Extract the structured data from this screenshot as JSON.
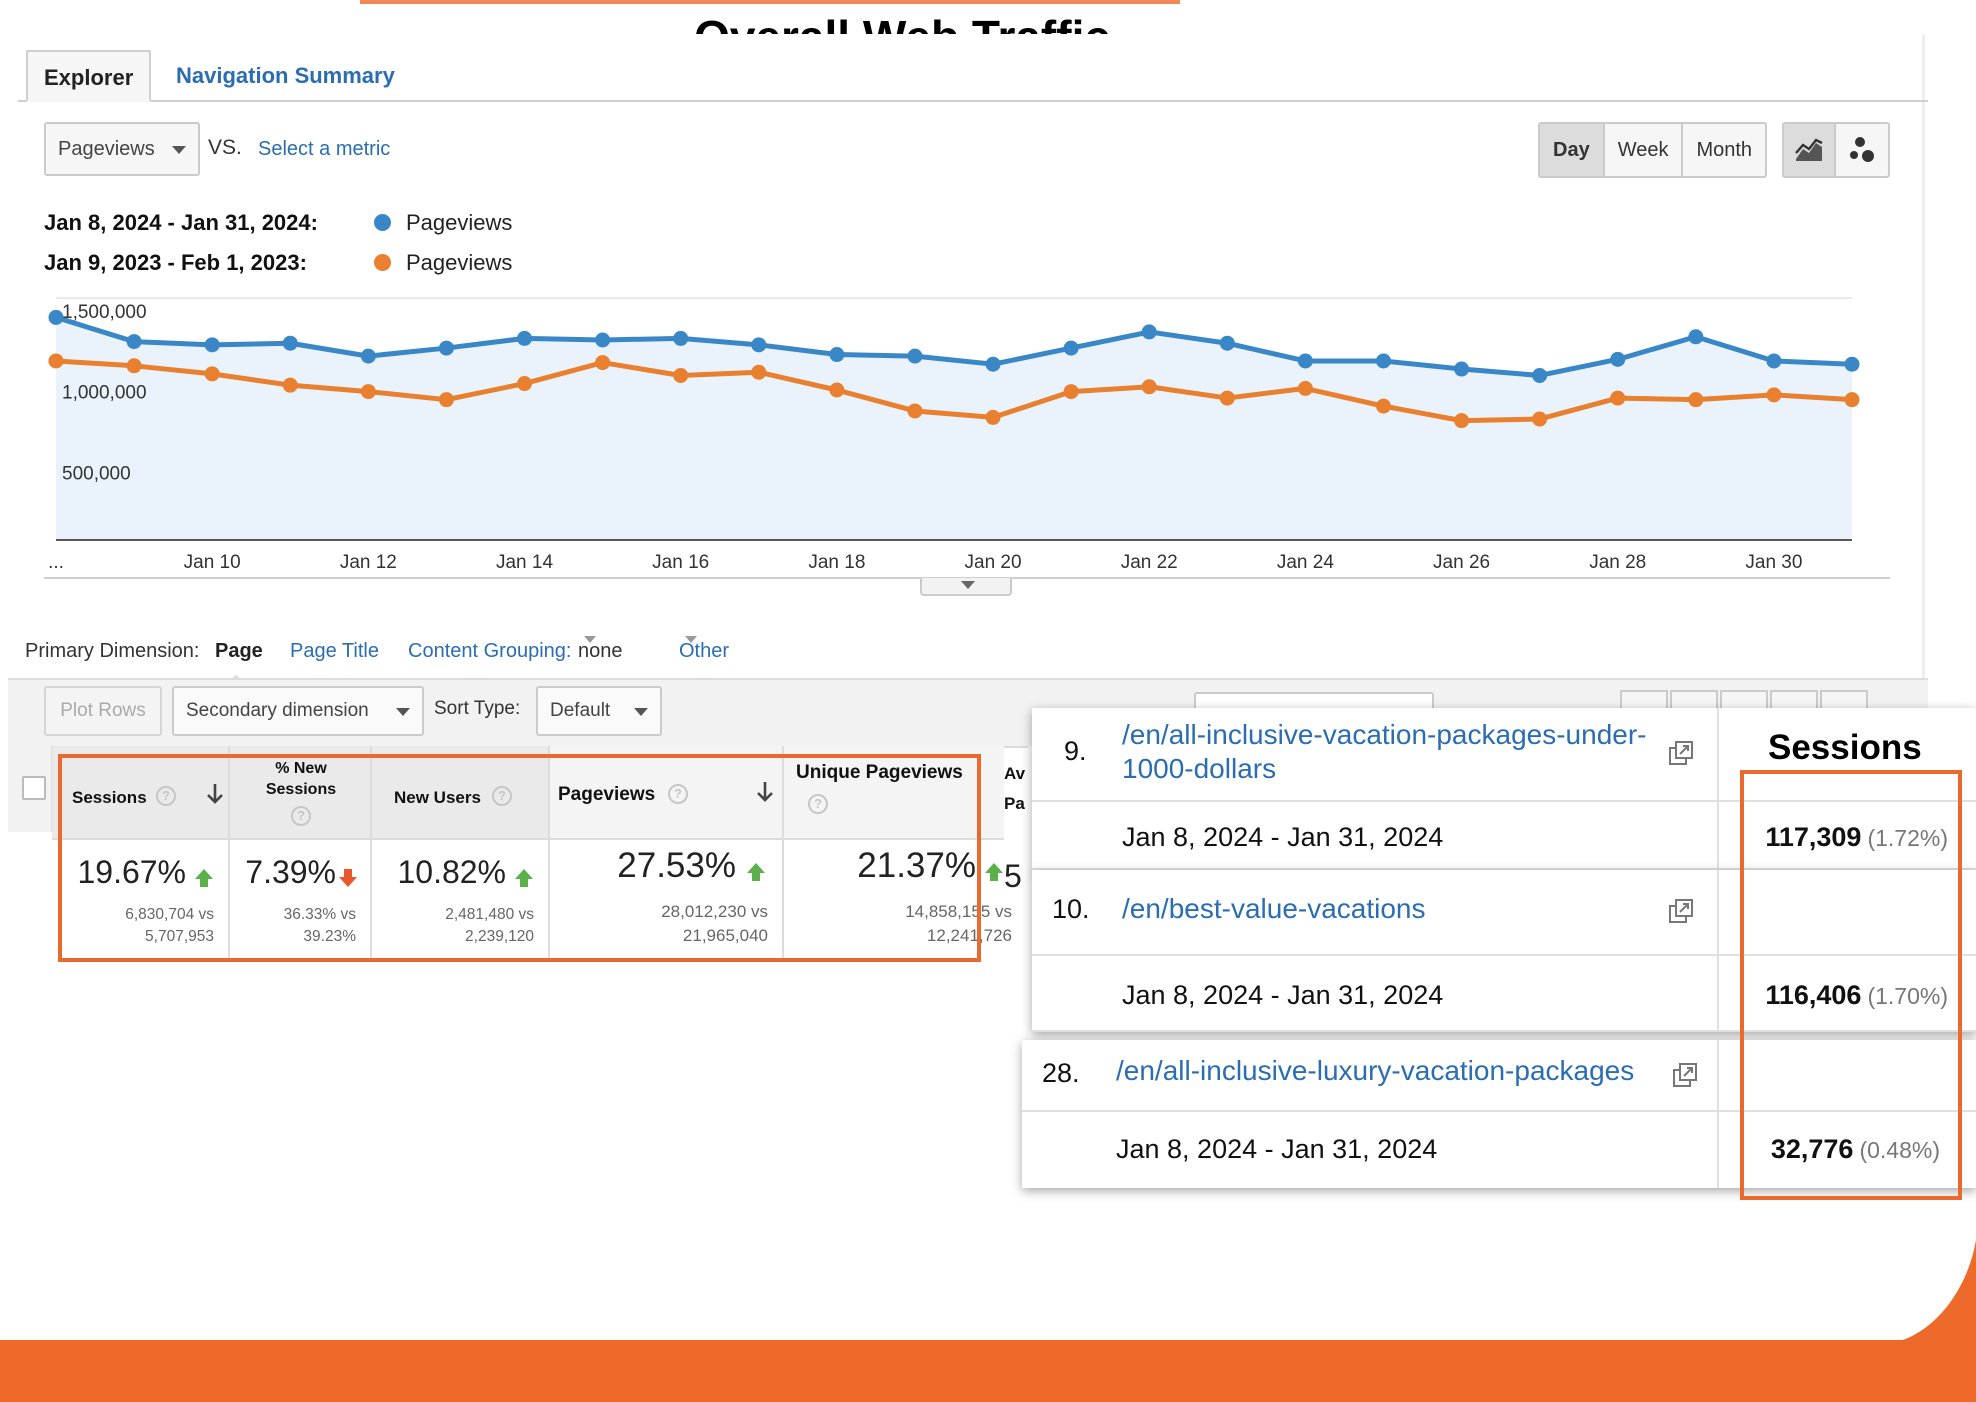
{
  "headline": "Overall Web Traffic",
  "tabs": {
    "explorer": "Explorer",
    "navigation_summary": "Navigation Summary"
  },
  "metric_bar": {
    "metric": "Pageviews",
    "vs": "VS.",
    "select_metric": "Select a metric",
    "periods": [
      "Day",
      "Week",
      "Month"
    ],
    "active_period": "Day"
  },
  "legend": [
    {
      "range": "Jan 8, 2024 - Jan 31, 2024:",
      "metric": "Pageviews",
      "color": "#3a87c8"
    },
    {
      "range": "Jan 9, 2023 - Feb 1, 2023:",
      "metric": "Pageviews",
      "color": "#e8802f"
    }
  ],
  "chart_data": {
    "type": "line",
    "title": "",
    "xlabel": "",
    "ylabel": "",
    "ylim": [
      0,
      1550000
    ],
    "y_ticks": [
      500000,
      1000000,
      1500000
    ],
    "y_tick_labels": [
      "500,000",
      "1,000,000",
      "1,500,000"
    ],
    "x_tick_labels": [
      "...",
      "Jan 10",
      "Jan 12",
      "Jan 14",
      "Jan 16",
      "Jan 18",
      "Jan 20",
      "Jan 22",
      "Jan 24",
      "Jan 26",
      "Jan 28",
      "Jan 30"
    ],
    "x_tick_indices": [
      0,
      2,
      4,
      6,
      8,
      10,
      12,
      14,
      16,
      18,
      20,
      22
    ],
    "grid": true,
    "series": [
      {
        "name": "Pageviews",
        "color": "#3a87c8",
        "area": true,
        "values": [
          1380000,
          1230000,
          1210000,
          1220000,
          1140000,
          1190000,
          1250000,
          1240000,
          1250000,
          1210000,
          1150000,
          1140000,
          1090000,
          1190000,
          1290000,
          1220000,
          1110000,
          1110000,
          1060000,
          1020000,
          1120000,
          1260000,
          1110000,
          1090000
        ]
      },
      {
        "name": "Pageviews",
        "color": "#e8802f",
        "area": false,
        "values": [
          1110000,
          1080000,
          1030000,
          960000,
          920000,
          870000,
          970000,
          1100000,
          1020000,
          1040000,
          930000,
          800000,
          760000,
          920000,
          950000,
          880000,
          940000,
          830000,
          740000,
          750000,
          880000,
          870000,
          900000,
          870000
        ]
      }
    ]
  },
  "dimension_bar": {
    "label": "Primary Dimension:",
    "active": "Page",
    "page_title": "Page Title",
    "content_grouping_label": "Content Grouping:",
    "content_grouping_value": "none",
    "other": "Other"
  },
  "toolbar": {
    "plot_rows": "Plot Rows",
    "secondary_dimension": "Secondary dimension",
    "sort_type_label": "Sort Type:",
    "sort_type": "Default"
  },
  "metrics": [
    {
      "title": "Sessions",
      "value": "19.67%",
      "trend": "up",
      "line1": "6,830,704 vs",
      "line2": "5,707,953"
    },
    {
      "title": "% New Sessions",
      "value": "7.39%",
      "trend": "down",
      "line1": "36.33% vs",
      "line2": "39.23%"
    },
    {
      "title": "New Users",
      "value": "10.82%",
      "trend": "up",
      "line1": "2,481,480 vs",
      "line2": "2,239,120"
    },
    {
      "title": "Pageviews",
      "value": "27.53%",
      "trend": "up",
      "line1": "28,012,230 vs",
      "line2": "21,965,040"
    },
    {
      "title": "Unique Pageviews",
      "value": "21.37%",
      "trend": "up",
      "line1": "14,858,155 vs",
      "line2": "12,241,726"
    }
  ],
  "cut_column": {
    "h1": "Av",
    "h2": "Pa",
    "v": "5"
  },
  "sessions_header": "Sessions",
  "rows": [
    {
      "num": "9.",
      "page_line1": "/en/all-inclusive-vacation-packages-under-",
      "page_line2": "1000-dollars",
      "date": "Jan 8, 2024 - Jan 31, 2024",
      "sessions": "117,309",
      "pct": "(1.72%)"
    },
    {
      "num": "10.",
      "page_line1": "/en/best-value-vacations",
      "date": "Jan 8, 2024 - Jan 31, 2024",
      "sessions": "116,406",
      "pct": "(1.70%)"
    },
    {
      "num": "28.",
      "page_line1": "/en/all-inclusive-luxury-vacation-packages",
      "date": "Jan 8, 2024 - Jan 31, 2024",
      "sessions": "32,776",
      "pct": "(0.48%)"
    }
  ],
  "colors": {
    "accent_orange": "#e96a2c",
    "link_blue": "#2a6db1",
    "up_green": "#5bb04a",
    "down_orange": "#e8582a"
  }
}
